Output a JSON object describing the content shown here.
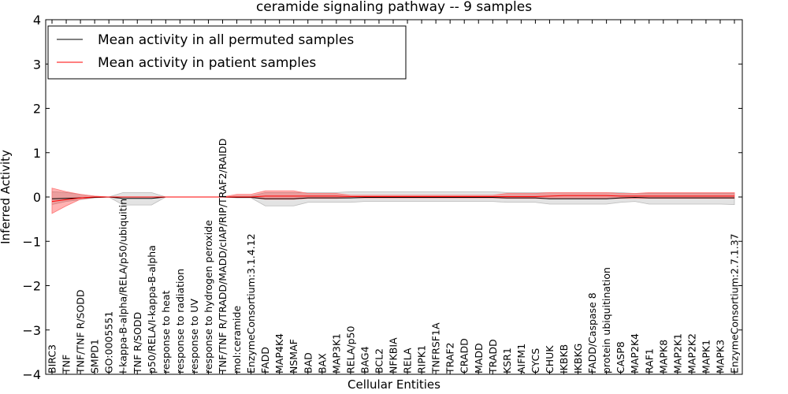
{
  "chart_data": {
    "type": "line",
    "title": "ceramide signaling pathway -- 9 samples",
    "xlabel": "Cellular Entities",
    "ylabel": "Inferred Activity",
    "ylim": [
      -4,
      4
    ],
    "yticks": [
      -4,
      -3,
      -2,
      -1,
      0,
      1,
      2,
      3,
      4
    ],
    "ytick_labels": [
      "−4",
      "−3",
      "−2",
      "−1",
      "0",
      "1",
      "2",
      "3",
      "4"
    ],
    "legend_position": "top-left",
    "categories": [
      "BIRC3",
      "TNF",
      "TNF/TNF R/SODD",
      "SMPD1",
      "GO:0005551",
      "I-kappa-B-alpha/RELA/p50/ubiquitin",
      "TNF R/SODD",
      "p50/RELA/I-kappa-B-alpha",
      "response to heat",
      "response to radiation",
      "response to UV",
      "response to hydrogen peroxide",
      "TNF/TNF R/TRADD/MADD/cIAP/RIP/TRAF2/RAIDD",
      "mol:ceramide",
      "EnzymeConsortium:3.1.4.12",
      "FADD",
      "MAP4K4",
      "NSMAF",
      "BAD",
      "BAX",
      "MAP3K1",
      "RELA/p50",
      "BAG4",
      "BCL2",
      "NFKBIA",
      "RELA",
      "RIPK1",
      "TNFRSF1A",
      "TRAF2",
      "CRADD",
      "MADD",
      "TRADD",
      "KSR1",
      "AIFM1",
      "CYCS",
      "CHUK",
      "IKBKB",
      "IKBKG",
      "FADD/Caspase 8",
      "protein ubiquitination",
      "CASP8",
      "MAP2K4",
      "RAF1",
      "MAPK8",
      "MAP2K1",
      "MAP2K2",
      "MAPK1",
      "MAPK3",
      "EnzymeConsortium:2.7.1.37"
    ],
    "series": [
      {
        "name": "Mean activity in all permuted samples",
        "color": "#000000",
        "values": [
          -0.04,
          -0.03,
          -0.02,
          -0.01,
          0.0,
          -0.03,
          -0.03,
          -0.03,
          0.0,
          0.0,
          0.0,
          0.0,
          0.0,
          -0.01,
          -0.01,
          -0.04,
          -0.04,
          -0.04,
          -0.02,
          -0.02,
          -0.02,
          -0.02,
          -0.01,
          -0.01,
          -0.01,
          -0.01,
          -0.01,
          -0.01,
          -0.01,
          -0.01,
          -0.01,
          -0.01,
          -0.02,
          -0.02,
          -0.02,
          -0.04,
          -0.04,
          -0.04,
          -0.04,
          -0.04,
          -0.02,
          -0.01,
          -0.02,
          -0.02,
          -0.02,
          -0.02,
          -0.02,
          -0.02,
          -0.02
        ],
        "band_low": [
          -0.17,
          -0.1,
          -0.06,
          -0.02,
          0.0,
          -0.18,
          -0.18,
          -0.18,
          0.0,
          0.0,
          0.0,
          0.0,
          0.0,
          -0.02,
          -0.02,
          -0.2,
          -0.2,
          -0.2,
          -0.12,
          -0.12,
          -0.12,
          -0.12,
          -0.1,
          -0.1,
          -0.1,
          -0.1,
          -0.1,
          -0.1,
          -0.1,
          -0.1,
          -0.1,
          -0.1,
          -0.12,
          -0.12,
          -0.12,
          -0.16,
          -0.16,
          -0.16,
          -0.16,
          -0.16,
          -0.12,
          -0.1,
          -0.16,
          -0.16,
          -0.16,
          -0.16,
          -0.16,
          -0.16,
          -0.17
        ],
        "band_high": [
          0.12,
          0.1,
          0.06,
          0.02,
          0.0,
          0.1,
          0.1,
          0.1,
          0.0,
          0.0,
          0.0,
          0.0,
          0.0,
          0.02,
          0.02,
          0.1,
          0.1,
          0.1,
          0.1,
          0.1,
          0.1,
          0.12,
          0.12,
          0.12,
          0.12,
          0.12,
          0.12,
          0.12,
          0.12,
          0.12,
          0.12,
          0.12,
          0.1,
          0.1,
          0.1,
          0.1,
          0.1,
          0.1,
          0.1,
          0.1,
          0.1,
          0.08,
          0.08,
          0.08,
          0.08,
          0.08,
          0.08,
          0.08,
          0.08
        ]
      },
      {
        "name": "Mean activity in patient samples",
        "color": "#ff0000",
        "values": [
          -0.1,
          -0.06,
          -0.02,
          0.0,
          0.0,
          0.0,
          0.0,
          0.0,
          0.0,
          0.0,
          0.0,
          0.0,
          0.0,
          0.0,
          0.0,
          0.02,
          0.02,
          0.02,
          0.02,
          0.02,
          0.02,
          0.01,
          0.01,
          0.01,
          0.01,
          0.01,
          0.01,
          0.01,
          0.01,
          0.01,
          0.01,
          0.01,
          0.01,
          0.01,
          0.01,
          0.02,
          0.03,
          0.03,
          0.03,
          0.03,
          0.02,
          0.02,
          0.02,
          0.02,
          0.02,
          0.02,
          0.02,
          0.02,
          0.02
        ],
        "band_low": [
          -0.37,
          -0.2,
          -0.05,
          -0.01,
          0.0,
          0.0,
          0.0,
          0.0,
          0.0,
          0.0,
          0.0,
          0.0,
          0.0,
          -0.01,
          -0.01,
          -0.05,
          -0.05,
          -0.05,
          -0.03,
          -0.03,
          -0.03,
          -0.02,
          -0.02,
          -0.02,
          -0.02,
          -0.02,
          -0.02,
          -0.02,
          -0.02,
          -0.02,
          -0.02,
          -0.02,
          -0.03,
          -0.03,
          -0.03,
          -0.04,
          -0.04,
          -0.04,
          -0.04,
          -0.04,
          -0.03,
          -0.03,
          -0.03,
          -0.03,
          -0.03,
          -0.03,
          -0.03,
          -0.03,
          -0.03
        ],
        "band_high": [
          0.2,
          0.12,
          0.06,
          0.02,
          0.0,
          0.0,
          0.0,
          0.0,
          0.0,
          0.0,
          0.0,
          0.0,
          0.0,
          0.06,
          0.06,
          0.14,
          0.14,
          0.14,
          0.08,
          0.08,
          0.08,
          0.04,
          0.04,
          0.04,
          0.04,
          0.04,
          0.04,
          0.04,
          0.04,
          0.04,
          0.04,
          0.04,
          0.08,
          0.08,
          0.08,
          0.1,
          0.1,
          0.1,
          0.1,
          0.1,
          0.08,
          0.08,
          0.1,
          0.1,
          0.1,
          0.1,
          0.1,
          0.1,
          0.1
        ]
      }
    ]
  }
}
